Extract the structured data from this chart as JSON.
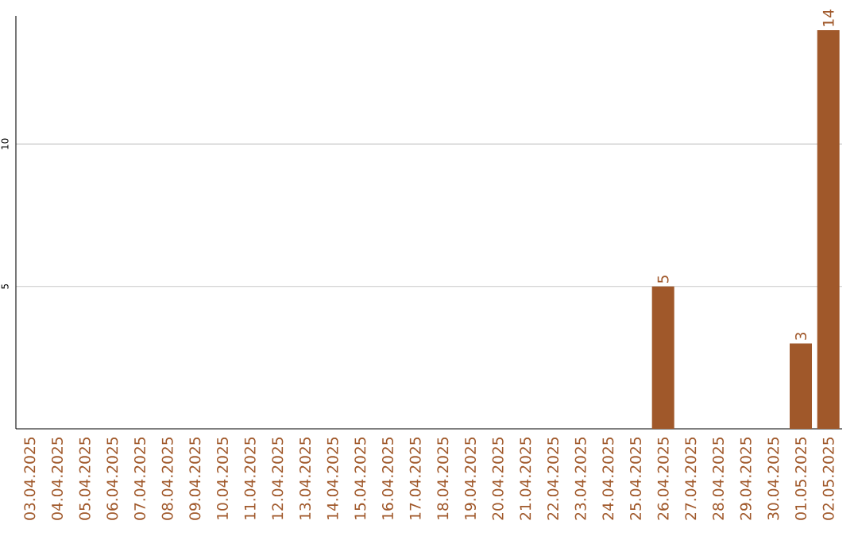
{
  "chart_data": {
    "type": "bar",
    "categories": [
      "03.04.2025",
      "04.04.2025",
      "05.04.2025",
      "06.04.2025",
      "07.04.2025",
      "08.04.2025",
      "09.04.2025",
      "10.04.2025",
      "11.04.2025",
      "12.04.2025",
      "13.04.2025",
      "14.04.2025",
      "15.04.2025",
      "16.04.2025",
      "17.04.2025",
      "18.04.2025",
      "19.04.2025",
      "20.04.2025",
      "21.04.2025",
      "22.04.2025",
      "23.04.2025",
      "24.04.2025",
      "25.04.2025",
      "26.04.2025",
      "27.04.2025",
      "28.04.2025",
      "29.04.2025",
      "30.04.2025",
      "01.05.2025",
      "02.05.2025"
    ],
    "values": [
      0,
      0,
      0,
      0,
      0,
      0,
      0,
      0,
      0,
      0,
      0,
      0,
      0,
      0,
      0,
      0,
      0,
      0,
      0,
      0,
      0,
      0,
      0,
      5,
      0,
      0,
      0,
      0,
      3,
      14
    ],
    "value_labels": [
      null,
      null,
      null,
      null,
      null,
      null,
      null,
      null,
      null,
      null,
      null,
      null,
      null,
      null,
      null,
      null,
      null,
      null,
      null,
      null,
      null,
      null,
      null,
      "5",
      null,
      null,
      null,
      null,
      "3",
      "14"
    ],
    "color": "#a0582a",
    "ylim": [
      0,
      14.5
    ],
    "yticks": [
      5,
      10
    ],
    "grid": "y"
  }
}
